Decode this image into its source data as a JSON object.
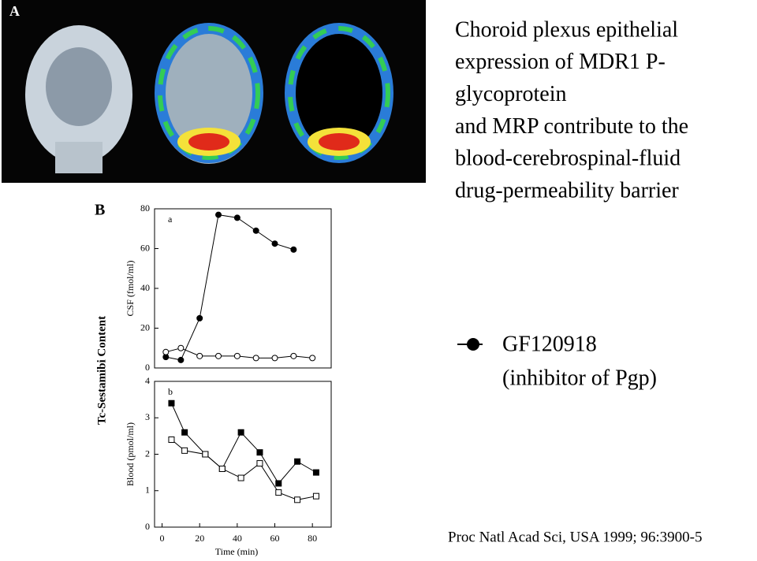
{
  "panel_labels": [
    "A",
    "B"
  ],
  "title_lines": [
    "Choroid plexus epithelial",
    "expression  of MDR1 P-",
    "glycoprotein",
    "and MRP contribute to the",
    "blood-cerebrospinal-fluid",
    "drug-permeability  barrier"
  ],
  "legend_note": "(inhibitor of Pgp)",
  "shared_ylabel": "Tc-Sestamibi Content",
  "citation": "Proc Natl Acad  Sci, USA  1999; 96:3900-5",
  "chart_data": [
    {
      "type": "line",
      "panel": "a",
      "ylabel": "CSF (fmol/ml)",
      "xlim": [
        -4,
        90
      ],
      "ylim": [
        0,
        80
      ],
      "yticks": [
        0,
        20,
        40,
        60,
        80
      ],
      "series": [
        {
          "name": "GF120918",
          "marker": "circle",
          "color": "#000000",
          "fill": "#000000",
          "x": [
            2,
            10,
            20,
            30,
            40,
            50,
            60,
            70
          ],
          "values": [
            5.5,
            4,
            25,
            77,
            75.5,
            69,
            62.5,
            59.5
          ]
        },
        {
          "marker": "circle",
          "color": "#000000",
          "fill": "#ffffff",
          "x": [
            2,
            10,
            20,
            30,
            40,
            50,
            60,
            70,
            80
          ],
          "values": [
            8,
            10,
            6,
            6,
            6,
            5,
            5,
            6,
            5
          ]
        }
      ]
    },
    {
      "type": "line",
      "panel": "b",
      "ylabel": "Blood (pmol/ml)",
      "xlabel": "Time (min)",
      "xlim": [
        -4,
        90
      ],
      "ylim": [
        0,
        4
      ],
      "yticks": [
        0,
        1,
        2,
        3,
        4
      ],
      "xticks": [
        0,
        20,
        40,
        60,
        80
      ],
      "series": [
        {
          "marker": "square",
          "color": "#000000",
          "fill": "#000000",
          "x": [
            5,
            12,
            23,
            32,
            42,
            52,
            62,
            72,
            82
          ],
          "values": [
            3.4,
            2.6,
            2,
            1.6,
            2.6,
            2.05,
            1.2,
            1.8,
            1.5
          ]
        },
        {
          "marker": "square",
          "color": "#000000",
          "fill": "#ffffff",
          "x": [
            5,
            12,
            23,
            32,
            42,
            52,
            62,
            72,
            82
          ],
          "values": [
            2.4,
            2.1,
            2,
            1.6,
            1.35,
            1.75,
            0.95,
            0.75,
            0.85
          ]
        }
      ]
    }
  ]
}
